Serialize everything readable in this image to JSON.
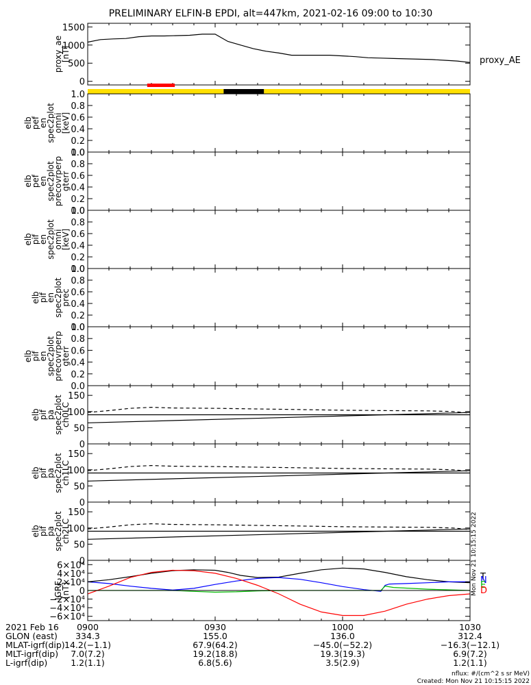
{
  "title": "PRELIMINARY ELFIN-B EPDI, alt=447km, 2021-02-16 09:00 to 10:30",
  "x_axis": {
    "range_minutes": [
      0,
      90
    ],
    "date_label": "2021 Feb 16",
    "ticks": [
      {
        "minute": 0,
        "label": "0900"
      },
      {
        "minute": 30,
        "label": "0930"
      },
      {
        "minute": 60,
        "label": "1000"
      },
      {
        "minute": 90,
        "label": "1030"
      }
    ]
  },
  "chart_data": [
    {
      "id": "proxy_ae",
      "type": "line",
      "ylabel": [
        "proxy_ae",
        "[nT]"
      ],
      "legend": "proxy_AE",
      "ylim": [
        -100,
        1600
      ],
      "yticks": [
        0,
        500,
        1000,
        1500
      ],
      "series": [
        {
          "name": "proxy_AE",
          "color": "#000000",
          "x": [
            0,
            3,
            6,
            9,
            12,
            15,
            18,
            21,
            24,
            27,
            30,
            33,
            36,
            39,
            42,
            45,
            48,
            51,
            54,
            57,
            60,
            63,
            66,
            69,
            72,
            75,
            78,
            81,
            84,
            87,
            90
          ],
          "y": [
            1080,
            1150,
            1170,
            1180,
            1230,
            1250,
            1250,
            1260,
            1270,
            1300,
            1300,
            1100,
            1000,
            900,
            830,
            780,
            720,
            720,
            720,
            720,
            700,
            680,
            650,
            640,
            630,
            620,
            610,
            600,
            580,
            560,
            520
          ]
        }
      ]
    },
    {
      "id": "status_bar",
      "type": "bar",
      "segments": [
        {
          "from": 0,
          "to": 32,
          "color": "#ffe000"
        },
        {
          "from": 32,
          "to": 41.5,
          "color": "#000000"
        },
        {
          "from": 41.5,
          "to": 90,
          "color": "#ffe000"
        }
      ],
      "marker": {
        "from": 14,
        "to": 20.5,
        "color": "#ff0000"
      }
    },
    {
      "id": "elb_pef_omni",
      "type": "line",
      "ylabel": [
        "elb",
        "pef",
        "en",
        "spec2plot",
        "omni",
        "[keV]"
      ],
      "ylim": [
        0,
        1.0
      ],
      "yticks": [
        0,
        0.2,
        0.4,
        0.6,
        0.8,
        1.0
      ],
      "series": []
    },
    {
      "id": "elb_pef_precovrperp",
      "type": "line",
      "ylabel": [
        "elb",
        "pef",
        "en",
        "spec2plot",
        "precovrperp",
        "gterr"
      ],
      "ylim": [
        0,
        1.0
      ],
      "yticks": [
        0,
        0.2,
        0.4,
        0.6,
        0.8,
        1.0
      ],
      "series": []
    },
    {
      "id": "elb_pif_omni",
      "type": "line",
      "ylabel": [
        "elb",
        "pif",
        "en",
        "spec2plot",
        "omni",
        "[keV]"
      ],
      "ylim": [
        0,
        1.0
      ],
      "yticks": [
        0,
        0.2,
        0.4,
        0.6,
        0.8,
        1.0
      ],
      "series": []
    },
    {
      "id": "elb_pif_prec",
      "type": "line",
      "ylabel": [
        "elb",
        "pif",
        "en",
        "spec2plot",
        "prec"
      ],
      "ylim": [
        0,
        1.0
      ],
      "yticks": [
        0,
        0.2,
        0.4,
        0.6,
        0.8,
        1.0
      ],
      "series": []
    },
    {
      "id": "elb_pif_precovrperp",
      "type": "line",
      "ylabel": [
        "elb",
        "pif",
        "en",
        "spec2plot",
        "precovrperp",
        "gterr"
      ],
      "ylim": [
        0,
        1.0
      ],
      "yticks": [
        0,
        0.2,
        0.4,
        0.6,
        0.8,
        1.0
      ],
      "series": []
    },
    {
      "id": "elb_pif_pa_ch0LC",
      "type": "line",
      "ylabel": [
        "elb",
        "pif",
        "pa",
        "spec2plot",
        "ch0LC"
      ],
      "ylim": [
        0,
        180
      ],
      "yticks": [
        0,
        50,
        100,
        150
      ],
      "series": [
        {
          "name": "",
          "color": "#000000",
          "dash": false,
          "x": [
            0,
            90
          ],
          "y": [
            65,
            97
          ]
        },
        {
          "name": "",
          "color": "#000000",
          "dash": false,
          "x": [
            0,
            90
          ],
          "y": [
            90,
            90
          ]
        },
        {
          "name": "",
          "color": "#000000",
          "dash": true,
          "x": [
            0,
            5,
            10,
            15,
            20,
            30,
            40,
            50,
            60,
            70,
            80,
            86,
            90
          ],
          "y": [
            97,
            103,
            110,
            113,
            111,
            110,
            108,
            106,
            104,
            103,
            102,
            100,
            95
          ]
        }
      ]
    },
    {
      "id": "elb_pif_pa_ch1LC",
      "type": "line",
      "ylabel": [
        "elb",
        "pif",
        "pa",
        "spec2plot",
        "ch1LC"
      ],
      "ylim": [
        0,
        180
      ],
      "yticks": [
        0,
        50,
        100,
        150
      ],
      "series": [
        {
          "name": "",
          "color": "#000000",
          "dash": false,
          "x": [
            0,
            90
          ],
          "y": [
            65,
            97
          ]
        },
        {
          "name": "",
          "color": "#000000",
          "dash": false,
          "x": [
            0,
            90
          ],
          "y": [
            90,
            90
          ]
        },
        {
          "name": "",
          "color": "#000000",
          "dash": true,
          "x": [
            0,
            5,
            10,
            15,
            20,
            30,
            40,
            50,
            60,
            70,
            80,
            86,
            90
          ],
          "y": [
            97,
            103,
            110,
            113,
            111,
            110,
            108,
            106,
            104,
            103,
            102,
            100,
            95
          ]
        }
      ]
    },
    {
      "id": "elb_pif_pa_ch2LC",
      "type": "line",
      "ylabel": [
        "elb",
        "pif",
        "pa",
        "spec2plot",
        "ch2LC"
      ],
      "ylim": [
        0,
        180
      ],
      "yticks": [
        0,
        50,
        100,
        150
      ],
      "series": [
        {
          "name": "",
          "color": "#000000",
          "dash": false,
          "x": [
            0,
            90
          ],
          "y": [
            65,
            97
          ]
        },
        {
          "name": "",
          "color": "#000000",
          "dash": false,
          "x": [
            0,
            90
          ],
          "y": [
            90,
            90
          ]
        },
        {
          "name": "",
          "color": "#000000",
          "dash": true,
          "x": [
            0,
            5,
            10,
            15,
            20,
            30,
            40,
            50,
            60,
            70,
            80,
            86,
            90
          ],
          "y": [
            97,
            103,
            110,
            113,
            111,
            110,
            108,
            106,
            104,
            103,
            102,
            100,
            95
          ]
        }
      ]
    },
    {
      "id": "igrf",
      "type": "line",
      "ylabel": [
        "IGRF",
        "[nT]"
      ],
      "ylim": [
        -70000,
        70000
      ],
      "yticks": [
        -60000,
        -40000,
        -20000,
        0,
        20000,
        40000,
        60000
      ],
      "ytick_labels": [
        "−6×10⁴",
        "−4×10⁴",
        "−2×10⁴",
        "0",
        "2×10⁴",
        "4×10⁴",
        "6×10⁴"
      ],
      "series": [
        {
          "name": "T",
          "color": "#000000",
          "x": [
            0,
            5,
            10,
            15,
            20,
            25,
            30,
            33,
            36,
            40,
            45,
            50,
            55,
            60,
            65,
            70,
            75,
            80,
            85,
            90
          ],
          "y": [
            20000,
            25000,
            32000,
            40000,
            46000,
            48000,
            47000,
            42000,
            35000,
            30000,
            31000,
            40000,
            48000,
            52000,
            50000,
            42000,
            32000,
            25000,
            20000,
            18000
          ]
        },
        {
          "name": "N",
          "color": "#0000ff",
          "x": [
            0,
            5,
            10,
            15,
            20,
            25,
            30,
            35,
            40,
            45,
            50,
            55,
            60,
            65,
            69,
            70,
            71,
            75,
            80,
            85,
            90
          ],
          "y": [
            20000,
            16000,
            10000,
            5000,
            1000,
            5000,
            14000,
            22000,
            28000,
            30000,
            26000,
            18000,
            9000,
            2000,
            -2000,
            12000,
            15000,
            16000,
            18000,
            20000,
            20000
          ]
        },
        {
          "name": "E",
          "color": "#00bb00",
          "x": [
            0,
            10,
            20,
            25,
            30,
            35,
            40,
            50,
            60,
            69,
            70,
            72,
            80,
            90
          ],
          "y": [
            0,
            0,
            0,
            -2000,
            -4000,
            -3000,
            -1000,
            0,
            0,
            0,
            10000,
            7000,
            3000,
            0
          ]
        },
        {
          "name": "D",
          "color": "#ff0000",
          "x": [
            0,
            5,
            10,
            15,
            20,
            25,
            30,
            35,
            40,
            45,
            50,
            55,
            60,
            65,
            70,
            75,
            80,
            85,
            90
          ],
          "y": [
            -8000,
            10000,
            30000,
            42000,
            47000,
            46000,
            40000,
            28000,
            12000,
            -8000,
            -32000,
            -50000,
            -58000,
            -58000,
            -48000,
            -32000,
            -20000,
            -12000,
            -8000
          ]
        }
      ]
    }
  ],
  "footer": {
    "rows": [
      {
        "label": "2021 Feb 16",
        "values": [
          "0900",
          "0930",
          "1000",
          "1030"
        ]
      },
      {
        "label": "GLON (east)",
        "values": [
          "334.3",
          "155.0",
          "136.0",
          "312.4"
        ]
      },
      {
        "label": "MLAT-igrf(dip)",
        "values": [
          "14.2(−1.1)",
          "67.9(64.2)",
          "−45.0(−52.2)",
          "−16.3(−12.1)"
        ]
      },
      {
        "label": "MLT-igrf(dip)",
        "values": [
          "7.0(7.2)",
          "19.2(18.8)",
          "19.3(19.3)",
          "6.9(7.2)"
        ]
      },
      {
        "label": "L-igrf(dip)",
        "values": [
          "1.2(1.1)",
          "6.8(5.6)",
          "3.5(2.9)",
          "1.2(1.1)"
        ]
      }
    ],
    "nflux": "nflux: #/(cm^2 s sr MeV)",
    "created": "Created: Mon Nov 21 10:15:15 2022",
    "vertical_stamp": "Mon Nov 21 10:15:15 2022"
  }
}
